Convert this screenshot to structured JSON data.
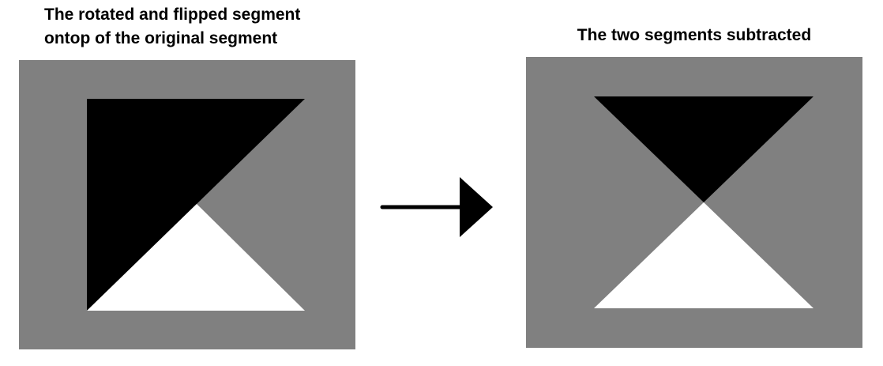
{
  "captions": {
    "left_line1": "The rotated and flipped segment",
    "left_line2": "ontop of the original segment",
    "right": "The two segments subtracted"
  },
  "colors": {
    "background": "#ffffff",
    "panel_gray": "#808080",
    "black_region": "#000000",
    "white_region": "#ffffff",
    "arrow": "#000000"
  },
  "icons": {
    "arrow": "right-arrow-icon"
  }
}
